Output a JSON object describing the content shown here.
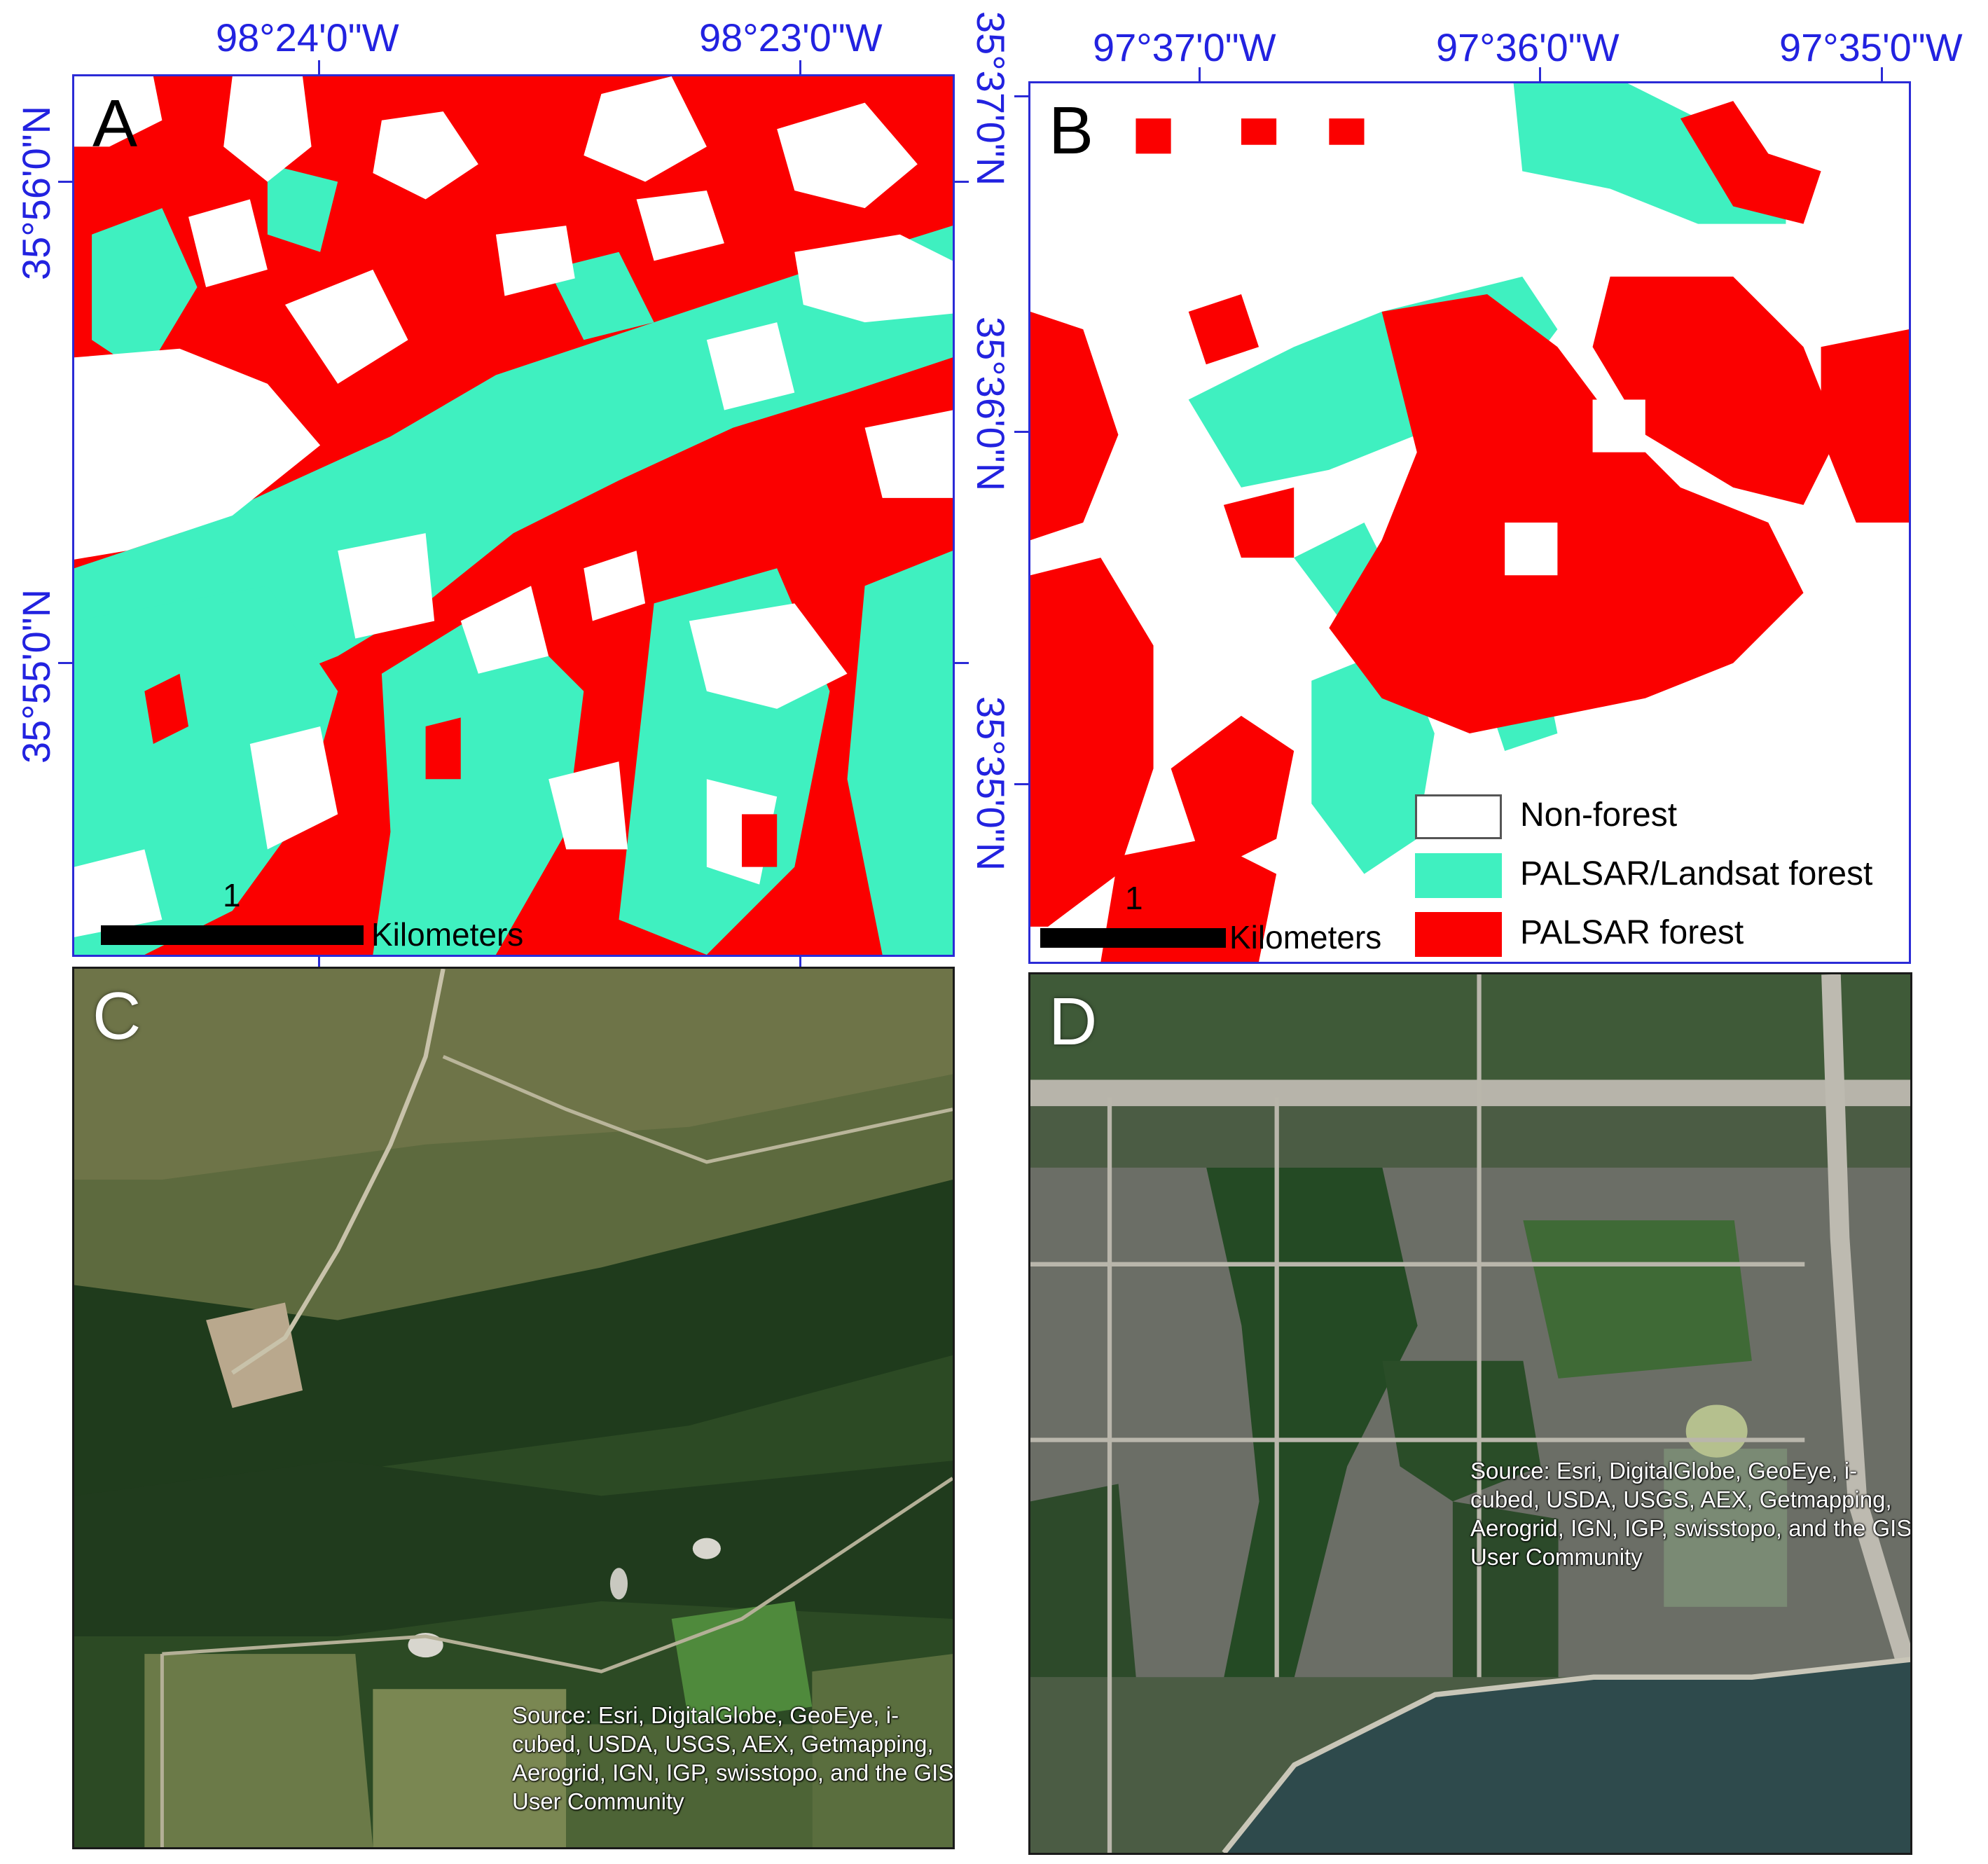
{
  "panels": {
    "a": {
      "letter": "A"
    },
    "b": {
      "letter": "B"
    },
    "c": {
      "letter": "C"
    },
    "d": {
      "letter": "D"
    }
  },
  "coords": {
    "a_lon_1": "98°24'0\"W",
    "a_lon_2": "98°23'0\"W",
    "a_lat_1": "35°56'0\"N",
    "a_lat_2": "35°55'0\"N",
    "b_lon_1": "97°37'0\"W",
    "b_lon_2": "97°36'0\"W",
    "b_lon_3": "97°35'0\"W",
    "b_lat_1": "35°37'0\"N",
    "b_lat_2": "35°36'0\"N",
    "b_lat_3": "35°35'0\"N"
  },
  "scalebar": {
    "value": "1",
    "unit": "Kilometers"
  },
  "legend": [
    {
      "label": "Non-forest",
      "color": "#ffffff"
    },
    {
      "label": "PALSAR/Landsat forest",
      "color": "#3ff0c0"
    },
    {
      "label": "PALSAR forest",
      "color": "#fb0000"
    }
  ],
  "attribution": "Source: Esri, DigitalGlobe, GeoEye, i-cubed, USDA, USGS, AEX, Getmapping, Aerogrid, IGN, IGP, swisstopo, and the GIS User Community",
  "colors": {
    "map_frame": "#2b2bd6",
    "coord_text": "#2222e0",
    "non_forest": "#ffffff",
    "palsar_landsat_forest": "#3ff0c0",
    "palsar_forest": "#fb0000"
  }
}
